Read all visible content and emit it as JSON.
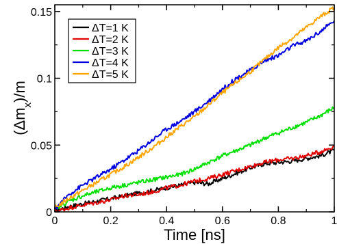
{
  "chart_data": {
    "type": "line",
    "title": "",
    "xlabel": "Time [ns]",
    "ylabel_main": "(Δm",
    "ylabel_sub": "x",
    "ylabel_tail": ")/m",
    "xlim": [
      0,
      1
    ],
    "ylim": [
      0,
      0.155
    ],
    "xticks": [
      0,
      0.2,
      0.4,
      0.6,
      0.8,
      1
    ],
    "xtick_labels": [
      "0",
      "0.2",
      "0.4",
      "0.6",
      "0.8",
      "1"
    ],
    "yticks": [
      0,
      0.05,
      0.1,
      0.15
    ],
    "ytick_labels": [
      "0",
      "0.05",
      "0.1",
      "0.15"
    ],
    "grid": false,
    "legend_position": "top-left",
    "series": [
      {
        "name": "ΔT=1 K",
        "color": "#000000",
        "x": [
          0,
          0.05,
          0.1,
          0.15,
          0.2,
          0.25,
          0.3,
          0.35,
          0.4,
          0.45,
          0.5,
          0.55,
          0.6,
          0.65,
          0.7,
          0.75,
          0.8,
          0.85,
          0.9,
          0.95,
          1.0
        ],
        "y": [
          0.001,
          0.004,
          0.006,
          0.008,
          0.01,
          0.012,
          0.014,
          0.016,
          0.018,
          0.02,
          0.022,
          0.021,
          0.025,
          0.029,
          0.033,
          0.036,
          0.037,
          0.038,
          0.04,
          0.042,
          0.046
        ]
      },
      {
        "name": "ΔT=2 K",
        "color": "#e00000",
        "x": [
          0,
          0.05,
          0.1,
          0.15,
          0.2,
          0.25,
          0.3,
          0.35,
          0.4,
          0.45,
          0.5,
          0.55,
          0.6,
          0.65,
          0.7,
          0.75,
          0.8,
          0.85,
          0.9,
          0.95,
          1.0
        ],
        "y": [
          0.0,
          0.003,
          0.005,
          0.007,
          0.009,
          0.012,
          0.013,
          0.015,
          0.018,
          0.02,
          0.023,
          0.025,
          0.028,
          0.031,
          0.034,
          0.037,
          0.039,
          0.04,
          0.042,
          0.045,
          0.049
        ]
      },
      {
        "name": "ΔT=3 K",
        "color": "#00e000",
        "x": [
          0,
          0.05,
          0.1,
          0.15,
          0.2,
          0.25,
          0.3,
          0.35,
          0.4,
          0.45,
          0.5,
          0.55,
          0.6,
          0.65,
          0.7,
          0.75,
          0.8,
          0.85,
          0.9,
          0.95,
          1.0
        ],
        "y": [
          0.002,
          0.008,
          0.012,
          0.015,
          0.018,
          0.02,
          0.022,
          0.024,
          0.026,
          0.028,
          0.032,
          0.037,
          0.042,
          0.046,
          0.05,
          0.055,
          0.059,
          0.063,
          0.067,
          0.072,
          0.078
        ]
      },
      {
        "name": "ΔT=4 K",
        "color": "#0000e0",
        "x": [
          0,
          0.05,
          0.1,
          0.15,
          0.2,
          0.25,
          0.3,
          0.35,
          0.4,
          0.45,
          0.5,
          0.55,
          0.6,
          0.65,
          0.7,
          0.75,
          0.8,
          0.85,
          0.9,
          0.95,
          1.0
        ],
        "y": [
          0.002,
          0.013,
          0.02,
          0.026,
          0.032,
          0.039,
          0.046,
          0.054,
          0.062,
          0.068,
          0.075,
          0.083,
          0.092,
          0.1,
          0.106,
          0.113,
          0.117,
          0.124,
          0.128,
          0.135,
          0.143
        ]
      },
      {
        "name": "ΔT=5 K",
        "color": "#ffa500",
        "x": [
          0,
          0.05,
          0.1,
          0.15,
          0.2,
          0.25,
          0.3,
          0.35,
          0.4,
          0.45,
          0.5,
          0.55,
          0.6,
          0.65,
          0.7,
          0.75,
          0.8,
          0.85,
          0.9,
          0.95,
          1.0
        ],
        "y": [
          0.003,
          0.01,
          0.016,
          0.022,
          0.028,
          0.034,
          0.041,
          0.048,
          0.056,
          0.064,
          0.071,
          0.08,
          0.089,
          0.097,
          0.105,
          0.114,
          0.123,
          0.13,
          0.138,
          0.146,
          0.153
        ]
      }
    ]
  }
}
